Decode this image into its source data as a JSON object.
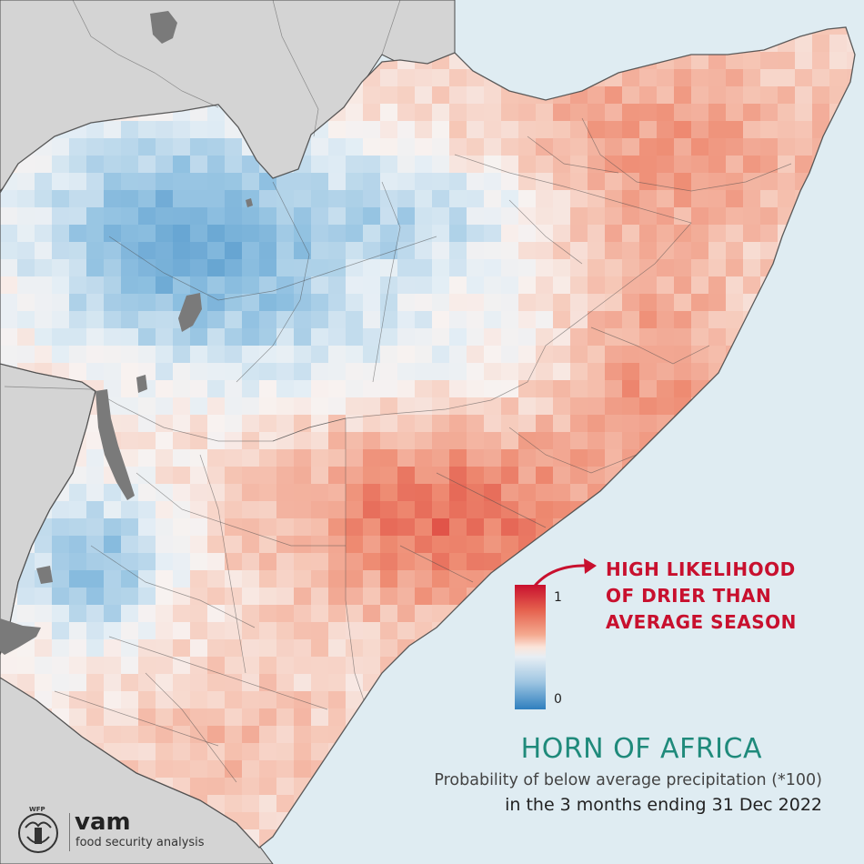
{
  "map": {
    "colors": {
      "sea": "#dfecf2",
      "land_outside": "#d4d4d4",
      "lakes": "#7a7a7a",
      "borders": "#4a4a4a",
      "dry": "#e8654f",
      "neutral": "#f7eeea",
      "wet": "#5c9fd0"
    }
  },
  "legend": {
    "max_label": "1",
    "min_label": "0",
    "colors": [
      "#c8102e",
      "#f4a98f",
      "#f5f0ee",
      "#9fc6e2",
      "#2f7fbe"
    ]
  },
  "callout": {
    "line1": "HIGH LIKELIHOOD",
    "line2": "OF DRIER THAN",
    "line3": "AVERAGE SEASON",
    "color": "#c8102e"
  },
  "title": {
    "main": "HORN OF AFRICA",
    "subtitle1": "Probability of below average precipitation (*100)",
    "subtitle2": "in the 3 months ending 31 Dec 2022",
    "color": "#1f8a7b"
  },
  "logo": {
    "org": "WFP",
    "name": "vam",
    "tagline": "food security analysis"
  }
}
